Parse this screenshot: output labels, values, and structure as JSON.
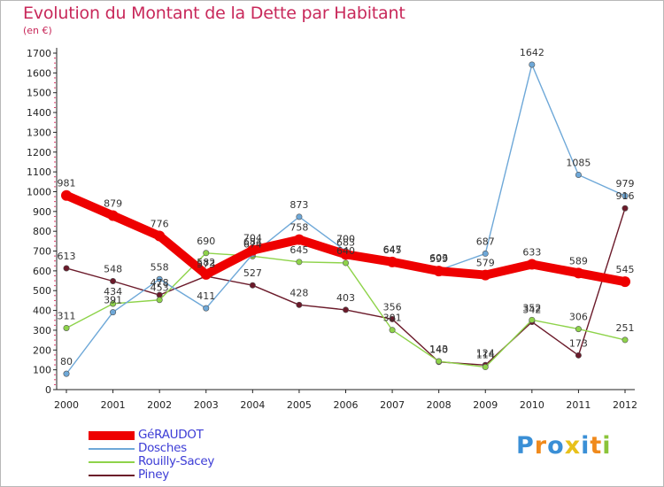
{
  "title": "Evolution du Montant de la Dette par Habitant",
  "subtitle": "(en €)",
  "logo": {
    "text": "Proxiti",
    "letters": [
      {
        "char": "P",
        "color": "#3a8fd6"
      },
      {
        "char": "r",
        "color": "#f08a1c"
      },
      {
        "char": "o",
        "color": "#3a8fd6"
      },
      {
        "char": "x",
        "color": "#e8c11a"
      },
      {
        "char": "i",
        "color": "#3a8fd6"
      },
      {
        "char": "t",
        "color": "#f08a1c"
      },
      {
        "char": "i",
        "color": "#8bc43a"
      }
    ]
  },
  "chart_data": {
    "type": "line",
    "title": "Evolution du Montant de la Dette par Habitant",
    "subtitle": "(en €)",
    "xlabel": "",
    "ylabel": "",
    "x": [
      "2000",
      "2001",
      "2002",
      "2003",
      "2004",
      "2005",
      "2006",
      "2007",
      "2008",
      "2009",
      "2010",
      "2011",
      "2012"
    ],
    "ylim": [
      0,
      1700
    ],
    "yticks": [
      0,
      100,
      200,
      300,
      400,
      500,
      600,
      700,
      800,
      900,
      1000,
      1100,
      1200,
      1300,
      1400,
      1500,
      1600,
      1700
    ],
    "grid": false,
    "legend_position": "bottom-left",
    "series": [
      {
        "name": "GéRAUDOT",
        "color": "#ee0000",
        "line_style": "thick",
        "values": [
          981,
          879,
          776,
          582,
          704,
          758,
          683,
          645,
          599,
          579,
          633,
          589,
          545
        ]
      },
      {
        "name": "Dosches",
        "color": "#6ea8d8",
        "line_style": "thin",
        "values": [
          80,
          391,
          558,
          411,
          684,
          873,
          700,
          647,
          603,
          687,
          1642,
          1085,
          979
        ]
      },
      {
        "name": "Rouilly-Sacey",
        "color": "#8ed34a",
        "line_style": "thin",
        "values": [
          311,
          434,
          453,
          690,
          674,
          645,
          640,
          301,
          143,
          114,
          352,
          306,
          251
        ]
      },
      {
        "name": "Piney",
        "color": "#6b1a2a",
        "line_style": "thin",
        "values": [
          613,
          548,
          478,
          573,
          527,
          428,
          403,
          356,
          140,
          124,
          342,
          173,
          916
        ]
      }
    ]
  }
}
